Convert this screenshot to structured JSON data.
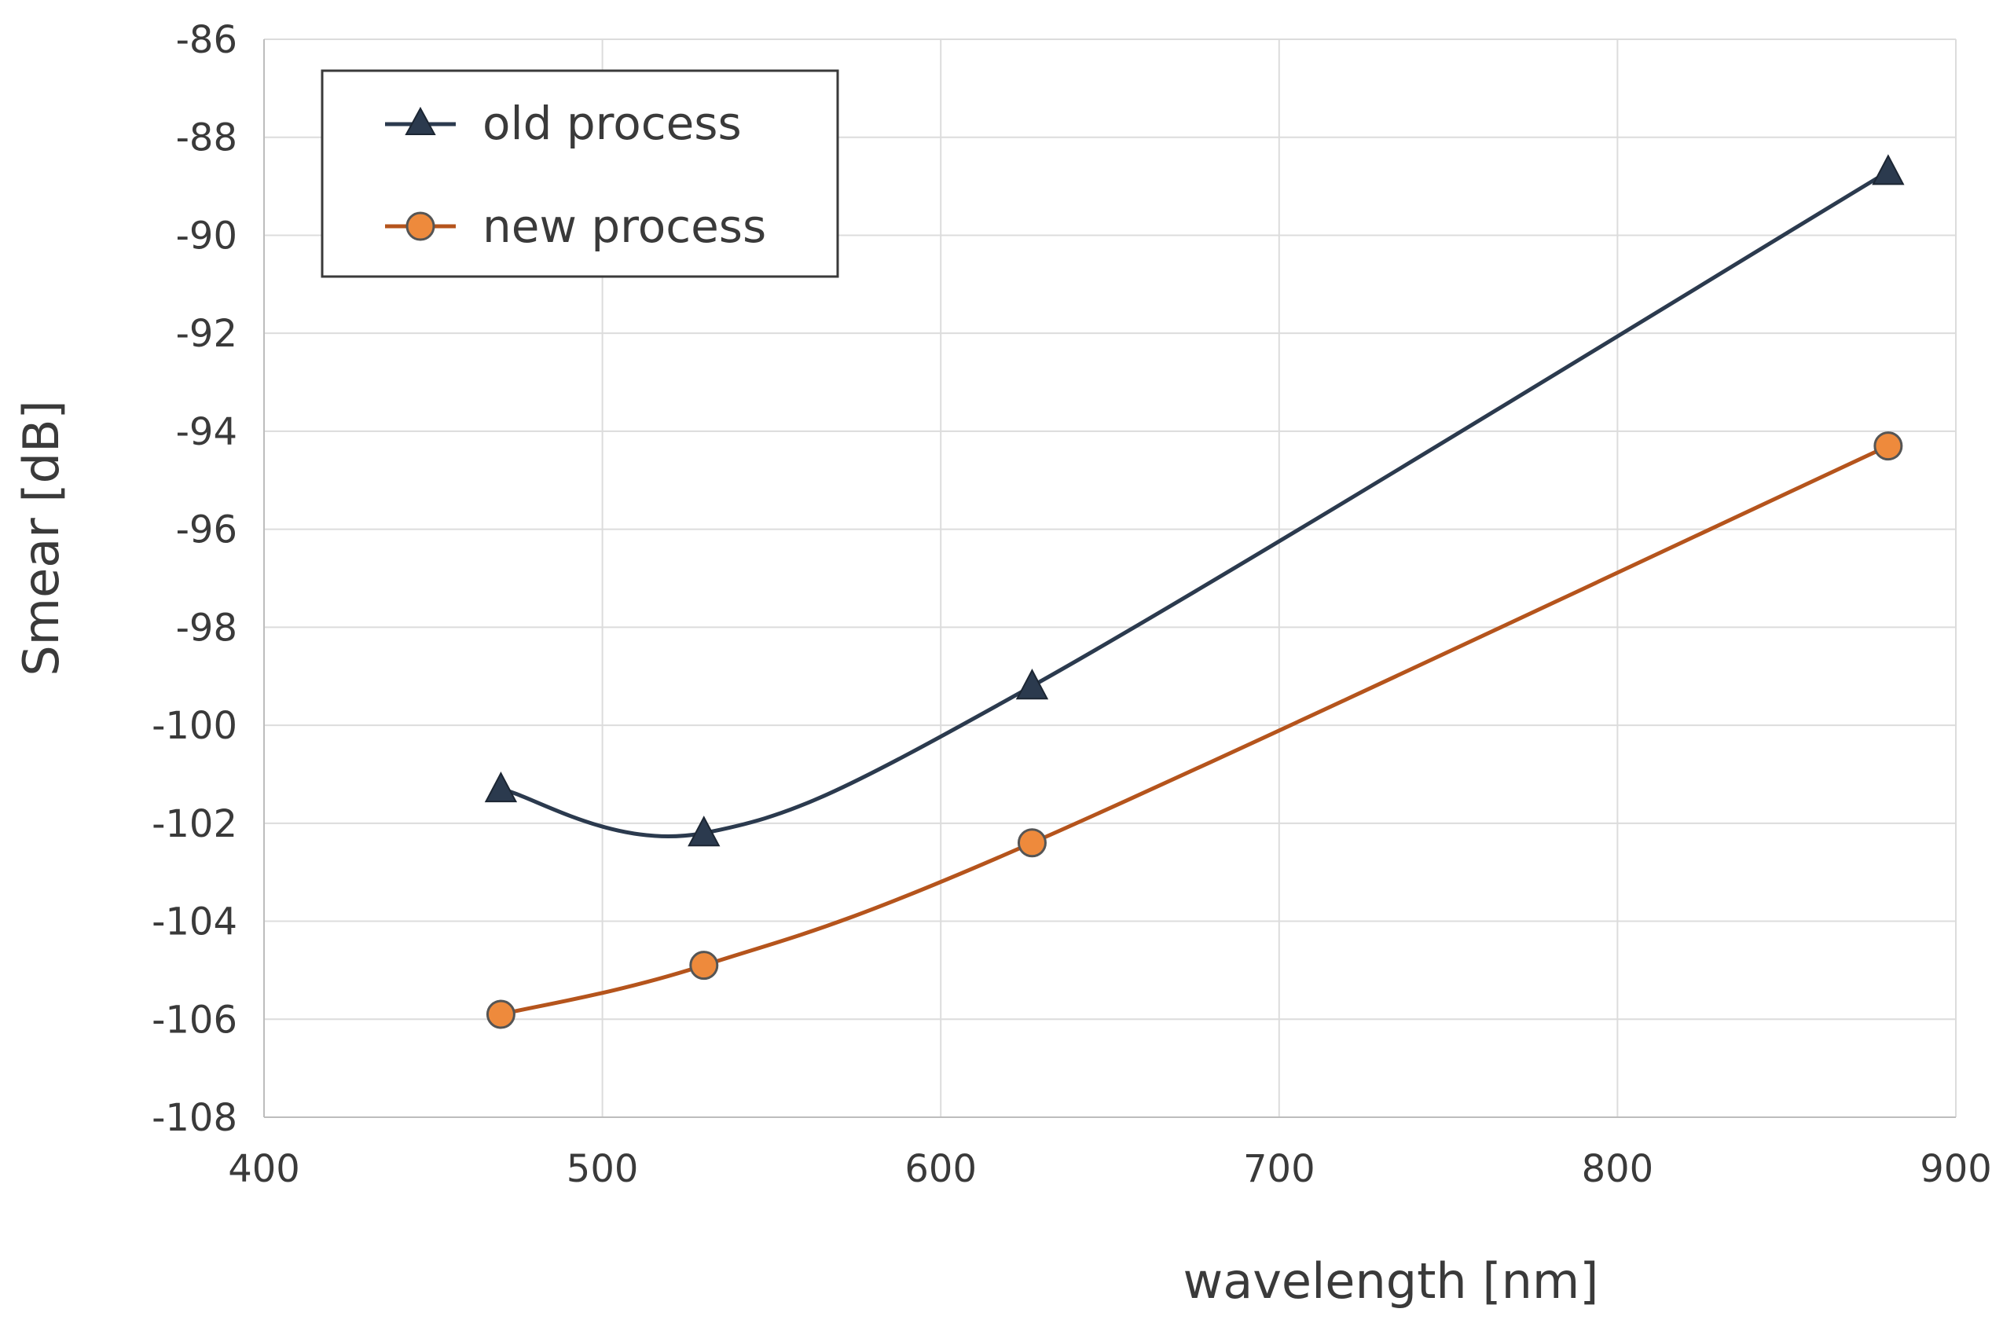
{
  "chart_data": {
    "type": "line",
    "title": "",
    "xlabel": "wavelength [nm]",
    "ylabel": "Smear [dB]",
    "xlim": [
      400,
      900
    ],
    "ylim": [
      -108,
      -86
    ],
    "xticks": [
      400,
      500,
      600,
      700,
      800,
      900
    ],
    "yticks": [
      -86,
      -88,
      -90,
      -92,
      -94,
      -96,
      -98,
      -100,
      -102,
      -104,
      -106,
      -108
    ],
    "grid": true,
    "legend_position": "top-left",
    "series": [
      {
        "name": "old process",
        "color": "#2b3a4e",
        "marker": "triangle",
        "x": [
          470,
          530,
          627,
          880
        ],
        "y": [
          -101.3,
          -102.2,
          -99.2,
          -88.7
        ]
      },
      {
        "name": "new process",
        "color": "#b5541c",
        "marker_fill": "#ee8a3c",
        "marker": "circle",
        "x": [
          470,
          530,
          627,
          880
        ],
        "y": [
          -105.9,
          -104.9,
          -102.4,
          -94.3
        ]
      }
    ]
  }
}
